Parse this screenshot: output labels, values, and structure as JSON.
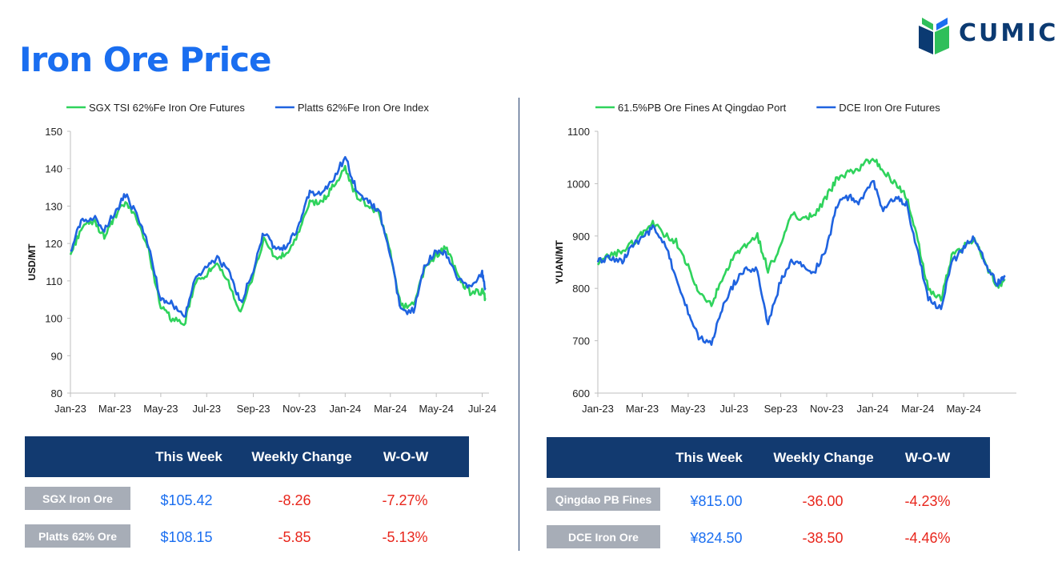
{
  "page": {
    "title": "Iron Ore Price"
  },
  "logo": {
    "text": "CUMIC"
  },
  "colors": {
    "green": "#2fd35c",
    "blue": "#1f63e0",
    "header_bg": "#123a70",
    "label_bg": "#a7adb7",
    "positive": "#1a6ef0",
    "negative": "#e8261c"
  },
  "chart_data": [
    {
      "type": "line",
      "ylabel": "USD/MT",
      "ylim": [
        80,
        150
      ],
      "yticks": [
        "80",
        "90",
        "100",
        "110",
        "120",
        "130",
        "140",
        "150"
      ],
      "xlim": [
        "2023-01-01",
        "2024-07-10"
      ],
      "xticks": [
        "Jan-23",
        "Mar-23",
        "May-23",
        "Jul-23",
        "Sep-23",
        "Nov-23",
        "Jan-24",
        "Mar-24",
        "May-24",
        "Jul-24"
      ],
      "legend_position": "top",
      "grid": false,
      "series": [
        {
          "name": "SGX TSI 62%Fe Iron Ore Futures",
          "color": "#2fd35c",
          "points": [
            [
              "2023-01-01",
              117
            ],
            [
              "2023-01-15",
              124
            ],
            [
              "2023-02-01",
              126
            ],
            [
              "2023-02-15",
              122
            ],
            [
              "2023-03-01",
              127
            ],
            [
              "2023-03-15",
              131
            ],
            [
              "2023-04-01",
              126
            ],
            [
              "2023-04-15",
              118
            ],
            [
              "2023-05-01",
              103
            ],
            [
              "2023-05-15",
              100
            ],
            [
              "2023-06-01",
              98
            ],
            [
              "2023-06-15",
              109
            ],
            [
              "2023-07-01",
              112
            ],
            [
              "2023-07-15",
              114
            ],
            [
              "2023-08-01",
              109
            ],
            [
              "2023-08-15",
              101
            ],
            [
              "2023-09-01",
              112
            ],
            [
              "2023-09-15",
              121
            ],
            [
              "2023-10-01",
              116
            ],
            [
              "2023-10-15",
              117
            ],
            [
              "2023-11-01",
              123
            ],
            [
              "2023-11-15",
              131
            ],
            [
              "2023-12-01",
              131
            ],
            [
              "2023-12-15",
              135
            ],
            [
              "2024-01-01",
              140
            ],
            [
              "2024-01-15",
              133
            ],
            [
              "2024-02-01",
              130
            ],
            [
              "2024-02-15",
              128
            ],
            [
              "2024-03-01",
              118
            ],
            [
              "2024-03-15",
              103
            ],
            [
              "2024-04-01",
              104
            ],
            [
              "2024-04-15",
              113
            ],
            [
              "2024-05-01",
              117
            ],
            [
              "2024-05-15",
              119
            ],
            [
              "2024-06-01",
              110
            ],
            [
              "2024-06-15",
              107
            ],
            [
              "2024-07-01",
              107
            ],
            [
              "2024-07-05",
              105.42
            ]
          ]
        },
        {
          "name": "Platts 62%Fe Iron Ore Index",
          "color": "#1f63e0",
          "points": [
            [
              "2023-01-01",
              118
            ],
            [
              "2023-01-15",
              126
            ],
            [
              "2023-02-01",
              127
            ],
            [
              "2023-02-15",
              124
            ],
            [
              "2023-03-01",
              128
            ],
            [
              "2023-03-15",
              133
            ],
            [
              "2023-04-01",
              127
            ],
            [
              "2023-04-15",
              119
            ],
            [
              "2023-05-01",
              105
            ],
            [
              "2023-05-15",
              104
            ],
            [
              "2023-06-01",
              100
            ],
            [
              "2023-06-15",
              110
            ],
            [
              "2023-07-01",
              114
            ],
            [
              "2023-07-15",
              116
            ],
            [
              "2023-08-01",
              112
            ],
            [
              "2023-08-15",
              104
            ],
            [
              "2023-09-01",
              113
            ],
            [
              "2023-09-15",
              123
            ],
            [
              "2023-10-01",
              118
            ],
            [
              "2023-10-15",
              119
            ],
            [
              "2023-11-01",
              125
            ],
            [
              "2023-11-15",
              134
            ],
            [
              "2023-12-01",
              133
            ],
            [
              "2023-12-15",
              137
            ],
            [
              "2024-01-01",
              143
            ],
            [
              "2024-01-15",
              135
            ],
            [
              "2024-02-01",
              131
            ],
            [
              "2024-02-15",
              129
            ],
            [
              "2024-03-01",
              117
            ],
            [
              "2024-03-15",
              102
            ],
            [
              "2024-04-01",
              102
            ],
            [
              "2024-04-15",
              114
            ],
            [
              "2024-05-01",
              118
            ],
            [
              "2024-05-15",
              117
            ],
            [
              "2024-06-01",
              110
            ],
            [
              "2024-06-15",
              108
            ],
            [
              "2024-07-01",
              112
            ],
            [
              "2024-07-05",
              108.15
            ]
          ]
        }
      ]
    },
    {
      "type": "line",
      "ylabel": "YUAN/MT",
      "ylim": [
        600,
        1100
      ],
      "yticks": [
        "600",
        "700",
        "800",
        "900",
        "1000",
        "1100"
      ],
      "xlim": [
        "2023-01-01",
        "2024-07-10"
      ],
      "xticks": [
        "Jan-23",
        "Mar-23",
        "May-23",
        "Jul-23",
        "Sep-23",
        "Nov-23",
        "Jan-24",
        "Mar-24",
        "May-24"
      ],
      "legend_position": "top",
      "grid": false,
      "series": [
        {
          "name": "61.5%PB Ore Fines At Qingdao Port",
          "color": "#2fd35c",
          "points": [
            [
              "2023-01-01",
              845
            ],
            [
              "2023-01-15",
              862
            ],
            [
              "2023-02-01",
              870
            ],
            [
              "2023-02-15",
              885
            ],
            [
              "2023-03-01",
              905
            ],
            [
              "2023-03-15",
              925
            ],
            [
              "2023-04-01",
              900
            ],
            [
              "2023-04-15",
              890
            ],
            [
              "2023-05-01",
              840
            ],
            [
              "2023-05-15",
              790
            ],
            [
              "2023-06-01",
              770
            ],
            [
              "2023-06-15",
              815
            ],
            [
              "2023-07-01",
              860
            ],
            [
              "2023-07-15",
              880
            ],
            [
              "2023-08-01",
              900
            ],
            [
              "2023-08-15",
              835
            ],
            [
              "2023-09-01",
              880
            ],
            [
              "2023-09-15",
              940
            ],
            [
              "2023-10-01",
              935
            ],
            [
              "2023-10-15",
              940
            ],
            [
              "2023-11-01",
              975
            ],
            [
              "2023-11-15",
              1010
            ],
            [
              "2023-12-01",
              1020
            ],
            [
              "2023-12-15",
              1030
            ],
            [
              "2024-01-01",
              1050
            ],
            [
              "2024-01-15",
              1025
            ],
            [
              "2024-02-01",
              1000
            ],
            [
              "2024-02-15",
              975
            ],
            [
              "2024-03-01",
              890
            ],
            [
              "2024-03-15",
              800
            ],
            [
              "2024-04-01",
              780
            ],
            [
              "2024-04-15",
              860
            ],
            [
              "2024-05-01",
              880
            ],
            [
              "2024-05-15",
              895
            ],
            [
              "2024-06-01",
              840
            ],
            [
              "2024-06-15",
              805
            ],
            [
              "2024-06-25",
              815
            ]
          ]
        },
        {
          "name": "DCE Iron Ore Futures",
          "color": "#1f63e0",
          "points": [
            [
              "2023-01-01",
              850
            ],
            [
              "2023-01-15",
              860
            ],
            [
              "2023-02-01",
              850
            ],
            [
              "2023-02-15",
              880
            ],
            [
              "2023-03-01",
              895
            ],
            [
              "2023-03-15",
              915
            ],
            [
              "2023-04-01",
              880
            ],
            [
              "2023-04-15",
              820
            ],
            [
              "2023-05-01",
              755
            ],
            [
              "2023-05-15",
              705
            ],
            [
              "2023-06-01",
              695
            ],
            [
              "2023-06-15",
              760
            ],
            [
              "2023-07-01",
              810
            ],
            [
              "2023-07-15",
              835
            ],
            [
              "2023-08-01",
              835
            ],
            [
              "2023-08-15",
              730
            ],
            [
              "2023-09-01",
              815
            ],
            [
              "2023-09-15",
              850
            ],
            [
              "2023-10-01",
              845
            ],
            [
              "2023-10-15",
              830
            ],
            [
              "2023-11-01",
              875
            ],
            [
              "2023-11-15",
              960
            ],
            [
              "2023-12-01",
              975
            ],
            [
              "2023-12-15",
              965
            ],
            [
              "2024-01-01",
              1010
            ],
            [
              "2024-01-15",
              950
            ],
            [
              "2024-02-01",
              975
            ],
            [
              "2024-02-15",
              960
            ],
            [
              "2024-03-01",
              870
            ],
            [
              "2024-03-15",
              780
            ],
            [
              "2024-04-01",
              760
            ],
            [
              "2024-04-15",
              850
            ],
            [
              "2024-05-01",
              875
            ],
            [
              "2024-05-15",
              900
            ],
            [
              "2024-06-01",
              840
            ],
            [
              "2024-06-15",
              810
            ],
            [
              "2024-06-25",
              824.5
            ]
          ]
        }
      ]
    }
  ],
  "tables": [
    {
      "headers": [
        "This Week",
        "Weekly Change",
        "W-O-W"
      ],
      "rows": [
        {
          "label": "SGX Iron Ore",
          "this_week": "$105.42",
          "weekly_change": "-8.26",
          "wow": "-7.27%"
        },
        {
          "label": "Platts 62% Ore",
          "this_week": "$108.15",
          "weekly_change": "-5.85",
          "wow": "-5.13%"
        }
      ]
    },
    {
      "headers": [
        "This Week",
        "Weekly Change",
        "W-O-W"
      ],
      "rows": [
        {
          "label": "Qingdao PB Fines",
          "this_week": "¥815.00",
          "weekly_change": "-36.00",
          "wow": "-4.23%"
        },
        {
          "label": "DCE Iron Ore",
          "this_week": "¥824.50",
          "weekly_change": "-38.50",
          "wow": "-4.46%"
        }
      ]
    }
  ]
}
